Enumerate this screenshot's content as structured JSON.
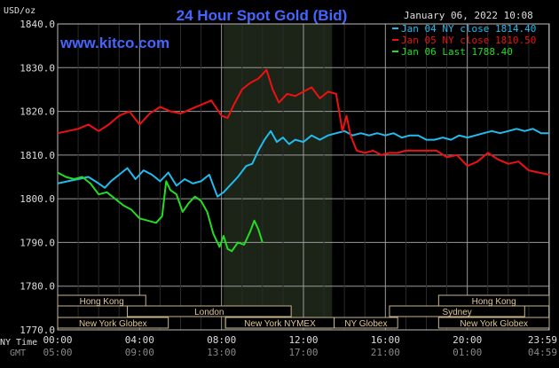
{
  "chart_data": {
    "type": "line",
    "title": "24 Hour Spot Gold (Bid)",
    "watermark": "www.kitco.com",
    "date": "January 06, 2022 10:08",
    "ylabel": "USD/oz",
    "ylim": [
      1770,
      1840
    ],
    "yticks": [
      {
        "v": 1840,
        "label": "1840.0"
      },
      {
        "v": 1830,
        "label": "1830.0"
      },
      {
        "v": 1820,
        "label": "1820.0"
      },
      {
        "v": 1810,
        "label": "1810.0"
      },
      {
        "v": 1800,
        "label": "1800.0"
      },
      {
        "v": 1790,
        "label": "1790.0"
      },
      {
        "v": 1780,
        "label": "1780.0"
      },
      {
        "v": 1770,
        "label": "1770.0"
      }
    ],
    "xlim": [
      0,
      24
    ],
    "xticks": [
      {
        "h": 0,
        "ny": "00:00",
        "gmt": "05:00"
      },
      {
        "h": 4,
        "ny": "04:00",
        "gmt": "09:00"
      },
      {
        "h": 8,
        "ny": "08:00",
        "gmt": "13:00"
      },
      {
        "h": 12,
        "ny": "12:00",
        "gmt": "17:00"
      },
      {
        "h": 16,
        "ny": "16:00",
        "gmt": "21:00"
      },
      {
        "h": 20,
        "ny": "20:00",
        "gmt": "01:00"
      },
      {
        "h": 23.983,
        "ny": "23:59",
        "gmt": "04:59"
      }
    ],
    "xaxis_row_labels": {
      "ny": "NY Time",
      "gmt": "GMT"
    },
    "grid": true,
    "legend_position": "top-right",
    "shaded_session": [
      8.1,
      13.4
    ],
    "sessions": [
      {
        "name": "Hong Kong",
        "start": 0,
        "end": 4.3,
        "row": 0
      },
      {
        "name": "London",
        "start": 3.4,
        "end": 11.4,
        "row": 1
      },
      {
        "name": "New York Globex",
        "start": 0,
        "end": 5.4,
        "row": 2
      },
      {
        "name": "New York NYMEX",
        "start": 8.2,
        "end": 13.5,
        "row": 2
      },
      {
        "name": "NY Globex",
        "start": 13.5,
        "end": 16.6,
        "row": 2
      },
      {
        "name": "Hong Kong",
        "start": 18.6,
        "end": 24,
        "row": 0
      },
      {
        "name": "Sydney",
        "start": 16.2,
        "end": 22.8,
        "row": 1
      },
      {
        "name": "New York Globex",
        "start": 18.6,
        "end": 24,
        "row": 2
      }
    ],
    "series": [
      {
        "name": "Jan 04 NY close 1814.40",
        "color": "#22bbee",
        "x": [
          0,
          0.5,
          1,
          1.5,
          2,
          2.3,
          2.6,
          3,
          3.4,
          3.8,
          4.2,
          4.6,
          5,
          5.4,
          5.8,
          6.2,
          6.6,
          7,
          7.4,
          7.8,
          8.1,
          8.4,
          8.8,
          9.2,
          9.5,
          9.8,
          10.1,
          10.4,
          10.7,
          11,
          11.3,
          11.6,
          12,
          12.4,
          12.8,
          13.2,
          13.6,
          14,
          14.4,
          14.8,
          15.2,
          15.6,
          16,
          16.4,
          16.8,
          17.2,
          17.6,
          18,
          18.4,
          18.8,
          19.2,
          19.6,
          20,
          20.4,
          20.8,
          21.2,
          21.6,
          22,
          22.4,
          22.8,
          23.2,
          23.6,
          24
        ],
        "values": [
          1803.5,
          1804.0,
          1804.5,
          1805.0,
          1803.5,
          1802.5,
          1804.0,
          1805.5,
          1807.0,
          1804.5,
          1806.5,
          1805.5,
          1804.0,
          1806.0,
          1803.0,
          1804.5,
          1803.5,
          1804.0,
          1805.5,
          1800.5,
          1801.5,
          1803.0,
          1805.0,
          1807.5,
          1808.0,
          1811.0,
          1813.5,
          1815.5,
          1813.0,
          1814.0,
          1812.5,
          1813.5,
          1813.0,
          1814.5,
          1813.5,
          1814.5,
          1815.0,
          1815.5,
          1814.5,
          1815.0,
          1814.5,
          1815.0,
          1814.5,
          1815.0,
          1814.0,
          1814.5,
          1814.5,
          1813.5,
          1813.5,
          1814.0,
          1813.5,
          1814.5,
          1814.0,
          1814.5,
          1815.0,
          1815.5,
          1815.0,
          1815.5,
          1816.0,
          1815.5,
          1816.0,
          1815.0,
          1815.0
        ]
      },
      {
        "name": "Jan 05 NY close 1810.50",
        "color": "#ee1111",
        "x": [
          0,
          0.5,
          1,
          1.5,
          2,
          2.5,
          3,
          3.5,
          4,
          4.5,
          5,
          5.5,
          6,
          6.5,
          7,
          7.5,
          8,
          8.3,
          8.6,
          9,
          9.4,
          9.8,
          10.2,
          10.5,
          10.8,
          11.2,
          11.6,
          12,
          12.4,
          12.8,
          13.2,
          13.6,
          13.9,
          14.1,
          14.3,
          14.6,
          15,
          15.4,
          15.8,
          16.2,
          16.6,
          17,
          17.5,
          18,
          18.5,
          19,
          19.5,
          20,
          20.5,
          21,
          21.5,
          22,
          22.5,
          23,
          23.5,
          24
        ],
        "values": [
          1815.0,
          1815.5,
          1816.0,
          1817.0,
          1815.5,
          1817.0,
          1819.0,
          1820.0,
          1817.0,
          1819.5,
          1821.0,
          1820.0,
          1819.5,
          1820.5,
          1821.5,
          1822.5,
          1819.0,
          1818.5,
          1821.5,
          1825.0,
          1826.5,
          1827.5,
          1829.5,
          1825.0,
          1822.0,
          1824.0,
          1823.5,
          1824.5,
          1825.5,
          1823.0,
          1824.5,
          1824.0,
          1815.5,
          1819.0,
          1814.5,
          1811.0,
          1810.5,
          1811.0,
          1810.0,
          1810.5,
          1810.5,
          1811.0,
          1811.0,
          1811.0,
          1811.0,
          1809.5,
          1810.0,
          1807.5,
          1808.5,
          1810.5,
          1809.0,
          1808.0,
          1808.5,
          1806.5,
          1806.0,
          1805.5
        ]
      },
      {
        "name": "Jan 06 Last 1788.40",
        "color": "#22dd22",
        "x": [
          0,
          0.4,
          0.8,
          1.2,
          1.6,
          2,
          2.4,
          2.8,
          3.2,
          3.6,
          4,
          4.4,
          4.8,
          5.1,
          5.3,
          5.5,
          5.8,
          6.1,
          6.4,
          6.7,
          7,
          7.3,
          7.6,
          7.9,
          8.1,
          8.3,
          8.5,
          8.8,
          9.1,
          9.4,
          9.6,
          9.8,
          10
        ],
        "values": [
          1806.0,
          1805.0,
          1804.5,
          1805.0,
          1803.5,
          1801.0,
          1801.5,
          1800.0,
          1798.5,
          1797.5,
          1795.5,
          1795.0,
          1794.5,
          1796.0,
          1804.0,
          1802.0,
          1801.0,
          1797.0,
          1799.0,
          1800.5,
          1799.5,
          1797.0,
          1792.0,
          1789.0,
          1791.5,
          1788.5,
          1788.0,
          1790.0,
          1789.5,
          1792.5,
          1795.0,
          1793.0,
          1790.0
        ]
      }
    ]
  }
}
